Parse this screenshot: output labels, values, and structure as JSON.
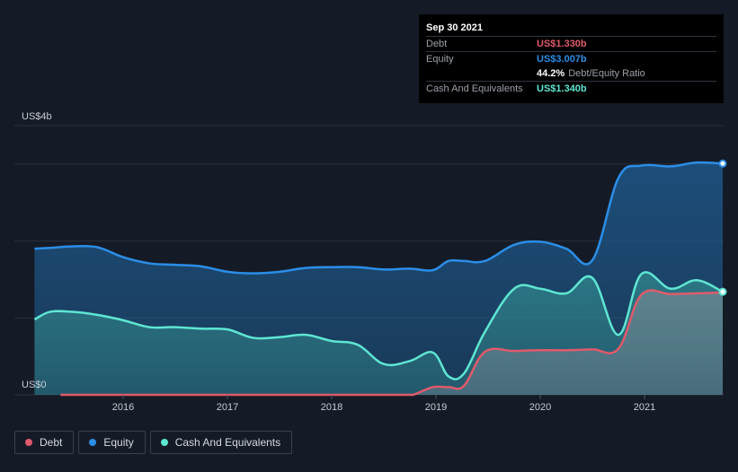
{
  "tooltip": {
    "date": "Sep 30 2021",
    "debt_label": "Debt",
    "debt_value": "US$1.330b",
    "equity_label": "Equity",
    "equity_value": "US$3.007b",
    "ratio_value": "44.2%",
    "ratio_label": "Debt/Equity Ratio",
    "cash_label": "Cash And Equivalents",
    "cash_value": "US$1.340b"
  },
  "legend": [
    {
      "label": "Debt",
      "color": "#e05a6b"
    },
    {
      "label": "Equity",
      "color": "#2b8ee8"
    },
    {
      "label": "Cash And Equivalents",
      "color": "#5ee6d2"
    }
  ],
  "colors": {
    "debt": "#e05a6b",
    "equity": "#2b8ee8",
    "cash": "#5ee6d2",
    "background": "#151b26"
  },
  "chart_data": {
    "type": "area",
    "y_top_label": "US$4b",
    "y_bottom_label": "US$0",
    "ylim": [
      0,
      3.5
    ],
    "xlim": [
      2015.15,
      2021.75
    ],
    "x_ticks": [
      {
        "value": 2016,
        "label": "2016"
      },
      {
        "value": 2017,
        "label": "2017"
      },
      {
        "value": 2018,
        "label": "2018"
      },
      {
        "value": 2019,
        "label": "2019"
      },
      {
        "value": 2020,
        "label": "2020"
      },
      {
        "value": 2021,
        "label": "2021"
      }
    ],
    "grid_values": [
      1,
      2,
      3,
      3.5
    ],
    "series": [
      {
        "name": "Debt",
        "x": [
          2015.4,
          2015.75,
          2016.0,
          2016.25,
          2016.5,
          2016.75,
          2017.0,
          2017.25,
          2017.5,
          2017.75,
          2018.0,
          2018.25,
          2018.5,
          2018.75,
          2018.8,
          2018.97,
          2019.12,
          2019.27,
          2019.47,
          2019.75,
          2020.0,
          2020.25,
          2020.5,
          2020.75,
          2020.97,
          2021.25,
          2021.5,
          2021.75
        ],
        "y": [
          0.0,
          0.0,
          0.0,
          0.0,
          0.0,
          0.0,
          0.0,
          0.0,
          0.0,
          0.0,
          0.0,
          0.0,
          0.0,
          0.0,
          0.01,
          0.1,
          0.1,
          0.12,
          0.56,
          0.57,
          0.58,
          0.58,
          0.59,
          0.6,
          1.3,
          1.31,
          1.32,
          1.33
        ]
      },
      {
        "name": "Equity",
        "x": [
          2015.15,
          2015.3,
          2015.5,
          2015.75,
          2016.0,
          2016.25,
          2016.5,
          2016.75,
          2017.0,
          2017.25,
          2017.5,
          2017.75,
          2018.0,
          2018.25,
          2018.5,
          2018.75,
          2018.97,
          2019.12,
          2019.27,
          2019.47,
          2019.75,
          2020.0,
          2020.25,
          2020.5,
          2020.75,
          2020.97,
          2021.25,
          2021.5,
          2021.75
        ],
        "y": [
          1.9,
          1.91,
          1.93,
          1.92,
          1.79,
          1.71,
          1.69,
          1.67,
          1.6,
          1.58,
          1.6,
          1.65,
          1.66,
          1.66,
          1.63,
          1.64,
          1.62,
          1.74,
          1.74,
          1.74,
          1.95,
          1.99,
          1.9,
          1.75,
          2.82,
          2.98,
          2.97,
          3.02,
          3.007
        ]
      },
      {
        "name": "Cash And Equivalents",
        "x": [
          2015.15,
          2015.3,
          2015.5,
          2015.75,
          2016.0,
          2016.25,
          2016.5,
          2016.75,
          2017.0,
          2017.25,
          2017.5,
          2017.75,
          2018.0,
          2018.25,
          2018.5,
          2018.75,
          2018.97,
          2019.12,
          2019.27,
          2019.47,
          2019.75,
          2020.0,
          2020.25,
          2020.5,
          2020.75,
          2020.97,
          2021.25,
          2021.5,
          2021.75
        ],
        "y": [
          0.98,
          1.08,
          1.08,
          1.04,
          0.97,
          0.88,
          0.88,
          0.86,
          0.85,
          0.74,
          0.75,
          0.78,
          0.7,
          0.65,
          0.4,
          0.44,
          0.55,
          0.24,
          0.28,
          0.82,
          1.38,
          1.38,
          1.32,
          1.52,
          0.78,
          1.57,
          1.38,
          1.49,
          1.34
        ]
      }
    ]
  }
}
